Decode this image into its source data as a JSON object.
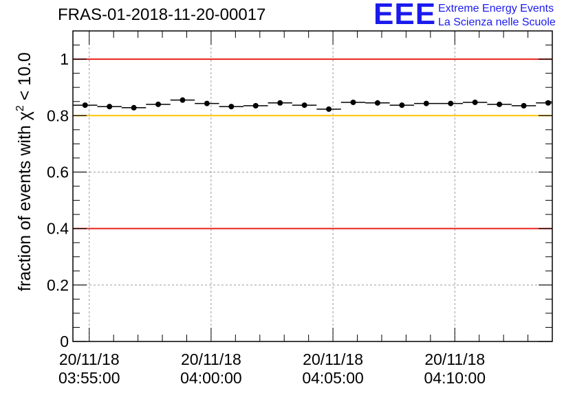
{
  "title": "FRAS-01-2018-11-20-00017",
  "logo": {
    "mark": "EEE",
    "line1": "Extreme Energy Events",
    "line2": "La Scienza nelle Scuole",
    "color": "#1a1aee"
  },
  "chart_data": {
    "type": "scatter",
    "title": "FRAS-01-2018-11-20-00017",
    "xlabel": "",
    "ylabel_main": "fraction of events with ",
    "ylabel_chi": "χ",
    "ylabel_sup": "2",
    "ylabel_tail": " < 10.0",
    "xlim_minutes": [
      -0.67,
      19.0
    ],
    "ylim": [
      0,
      1.1
    ],
    "yticks": [
      0,
      0.2,
      0.4,
      0.6,
      0.8,
      1
    ],
    "ytick_labels": [
      "0",
      "0.2",
      "0.4",
      "0.6",
      "0.8",
      "1"
    ],
    "xticks_minutes": [
      0,
      5,
      10,
      15
    ],
    "xtick_labels": [
      [
        "20/11/18",
        "03:55:00"
      ],
      [
        "20/11/18",
        "04:00:00"
      ],
      [
        "20/11/18",
        "04:05:00"
      ],
      [
        "20/11/18",
        "04:10:00"
      ]
    ],
    "grid": true,
    "bin_width_minutes": 1.0,
    "bin_centers_minutes": [
      -0.17,
      0.83,
      1.83,
      2.83,
      3.83,
      4.83,
      5.83,
      6.83,
      7.83,
      8.83,
      9.83,
      10.83,
      11.83,
      12.83,
      13.83,
      14.83,
      15.83,
      16.83,
      17.83,
      18.83
    ],
    "values": [
      0.837,
      0.832,
      0.828,
      0.84,
      0.855,
      0.843,
      0.832,
      0.835,
      0.845,
      0.837,
      0.823,
      0.847,
      0.845,
      0.837,
      0.843,
      0.843,
      0.847,
      0.84,
      0.835,
      0.845
    ],
    "reference_lines": [
      {
        "y": 1.0,
        "color": "#e8201a"
      },
      {
        "y": 0.8,
        "color": "#ffc300"
      },
      {
        "y": 0.4,
        "color": "#e8201a"
      }
    ]
  }
}
